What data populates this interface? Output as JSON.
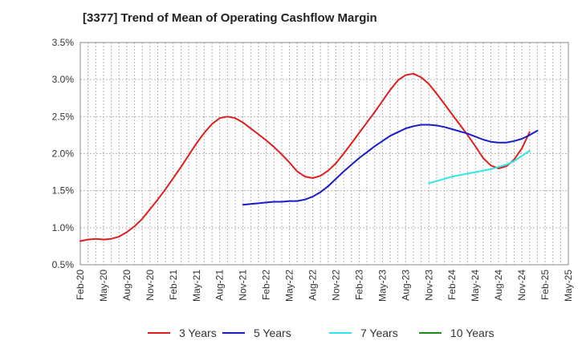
{
  "chart_data": {
    "type": "line",
    "title": "[3377]  Trend of Mean of Operating Cashflow Margin",
    "xlabel": "",
    "ylabel": "",
    "ylim": [
      0.5,
      3.5
    ],
    "yticks": [
      "0.5%",
      "1.0%",
      "1.5%",
      "2.0%",
      "2.5%",
      "3.0%",
      "3.5%"
    ],
    "x_ticks": [
      "Feb-20",
      "May-20",
      "Aug-20",
      "Nov-20",
      "Feb-21",
      "May-21",
      "Aug-21",
      "Nov-21",
      "Feb-22",
      "May-22",
      "Aug-22",
      "Nov-22",
      "Feb-23",
      "May-23",
      "Aug-23",
      "Nov-23",
      "Feb-24",
      "May-24",
      "Aug-24",
      "Nov-24",
      "Feb-25",
      "May-25"
    ],
    "grid": true,
    "legend_position": "bottom",
    "series": [
      {
        "name": "3 Years",
        "color": "#dd1f1f",
        "start_index": 0,
        "values": [
          0.82,
          0.84,
          0.85,
          0.84,
          0.85,
          0.88,
          0.94,
          1.02,
          1.12,
          1.25,
          1.38,
          1.52,
          1.67,
          1.82,
          1.98,
          2.14,
          2.28,
          2.4,
          2.48,
          2.5,
          2.48,
          2.42,
          2.34,
          2.26,
          2.18,
          2.09,
          1.99,
          1.88,
          1.76,
          1.69,
          1.67,
          1.7,
          1.77,
          1.87,
          2.0,
          2.14,
          2.28,
          2.42,
          2.56,
          2.71,
          2.86,
          2.99,
          3.06,
          3.08,
          3.03,
          2.94,
          2.81,
          2.67,
          2.53,
          2.39,
          2.25,
          2.1,
          1.94,
          1.84,
          1.8,
          1.83,
          1.92,
          2.07,
          2.29
        ]
      },
      {
        "name": "5 Years",
        "color": "#1a1acc",
        "start_index": 21,
        "values": [
          1.31,
          1.32,
          1.33,
          1.34,
          1.35,
          1.35,
          1.36,
          1.36,
          1.38,
          1.42,
          1.48,
          1.56,
          1.66,
          1.76,
          1.85,
          1.94,
          2.02,
          2.1,
          2.17,
          2.24,
          2.29,
          2.34,
          2.37,
          2.39,
          2.39,
          2.38,
          2.36,
          2.33,
          2.3,
          2.27,
          2.23,
          2.19,
          2.16,
          2.15,
          2.15,
          2.17,
          2.2,
          2.25,
          2.31
        ]
      },
      {
        "name": "7 Years",
        "color": "#2ee6e6",
        "start_index": 45,
        "values": [
          1.6,
          1.63,
          1.66,
          1.69,
          1.71,
          1.73,
          1.75,
          1.77,
          1.79,
          1.82,
          1.85,
          1.9,
          1.97,
          2.04
        ]
      },
      {
        "name": "10 Years",
        "color": "#1a8c1a",
        "start_index": 0,
        "values": []
      }
    ]
  }
}
